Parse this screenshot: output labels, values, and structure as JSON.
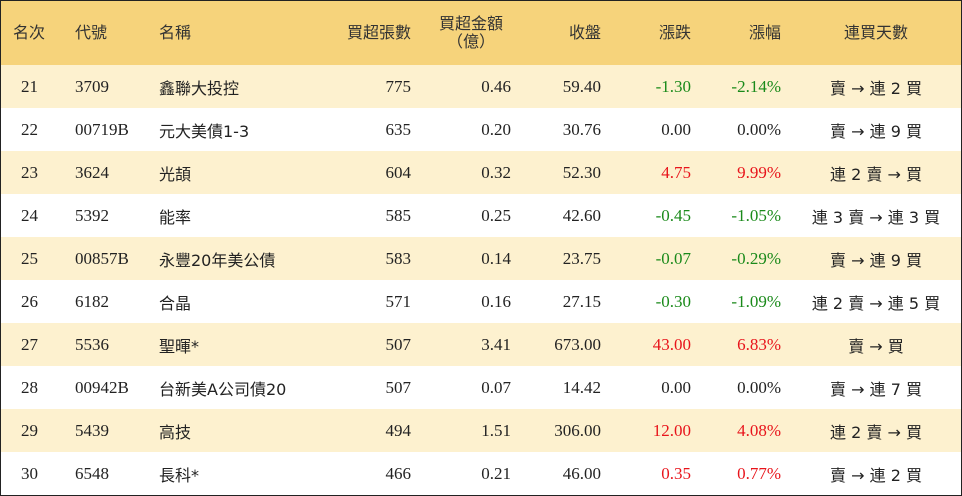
{
  "headers": {
    "rank": "名次",
    "code": "代號",
    "name": "名稱",
    "lots": "買超張數",
    "amount_line1": "買超金額",
    "amount_line2": "（億）",
    "close": "收盤",
    "change": "漲跌",
    "change_pct": "漲幅",
    "streak": "連買天數"
  },
  "rows": [
    {
      "rank": "21",
      "code": "3709",
      "name": "鑫聯大投控",
      "lots": "775",
      "amount": "0.46",
      "close": "59.40",
      "change": "-1.30",
      "pct": "-2.14%",
      "dir": "neg",
      "streak": "賣 → 連 2 買"
    },
    {
      "rank": "22",
      "code": "00719B",
      "name": "元大美債1-3",
      "lots": "635",
      "amount": "0.20",
      "close": "30.76",
      "change": "0.00",
      "pct": "0.00%",
      "dir": "zero",
      "streak": "賣 → 連 9 買"
    },
    {
      "rank": "23",
      "code": "3624",
      "name": "光頡",
      "lots": "604",
      "amount": "0.32",
      "close": "52.30",
      "change": "4.75",
      "pct": "9.99%",
      "dir": "pos",
      "streak": "連 2 賣 → 買"
    },
    {
      "rank": "24",
      "code": "5392",
      "name": "能率",
      "lots": "585",
      "amount": "0.25",
      "close": "42.60",
      "change": "-0.45",
      "pct": "-1.05%",
      "dir": "neg",
      "streak": "連 3 賣 → 連 3 買"
    },
    {
      "rank": "25",
      "code": "00857B",
      "name": "永豐20年美公債",
      "lots": "583",
      "amount": "0.14",
      "close": "23.75",
      "change": "-0.07",
      "pct": "-0.29%",
      "dir": "neg",
      "streak": "賣 → 連 9 買"
    },
    {
      "rank": "26",
      "code": "6182",
      "name": "合晶",
      "lots": "571",
      "amount": "0.16",
      "close": "27.15",
      "change": "-0.30",
      "pct": "-1.09%",
      "dir": "neg",
      "streak": "連 2 賣 → 連 5 買"
    },
    {
      "rank": "27",
      "code": "5536",
      "name": "聖暉*",
      "lots": "507",
      "amount": "3.41",
      "close": "673.00",
      "change": "43.00",
      "pct": "6.83%",
      "dir": "pos",
      "streak": "賣 → 買"
    },
    {
      "rank": "28",
      "code": "00942B",
      "name": "台新美A公司債20",
      "lots": "507",
      "amount": "0.07",
      "close": "14.42",
      "change": "0.00",
      "pct": "0.00%",
      "dir": "zero",
      "streak": "賣 → 連 7 買"
    },
    {
      "rank": "29",
      "code": "5439",
      "name": "高技",
      "lots": "494",
      "amount": "1.51",
      "close": "306.00",
      "change": "12.00",
      "pct": "4.08%",
      "dir": "pos",
      "streak": "連 2 賣 → 買"
    },
    {
      "rank": "30",
      "code": "6548",
      "name": "長科*",
      "lots": "466",
      "amount": "0.21",
      "close": "46.00",
      "change": "0.35",
      "pct": "0.77%",
      "dir": "pos",
      "streak": "賣 → 連 2 買"
    }
  ],
  "colors": {
    "header_bg": "#f6d37b",
    "row_shade": "#fdf1cf",
    "up": "#e8141b",
    "down": "#1a8a1a"
  }
}
